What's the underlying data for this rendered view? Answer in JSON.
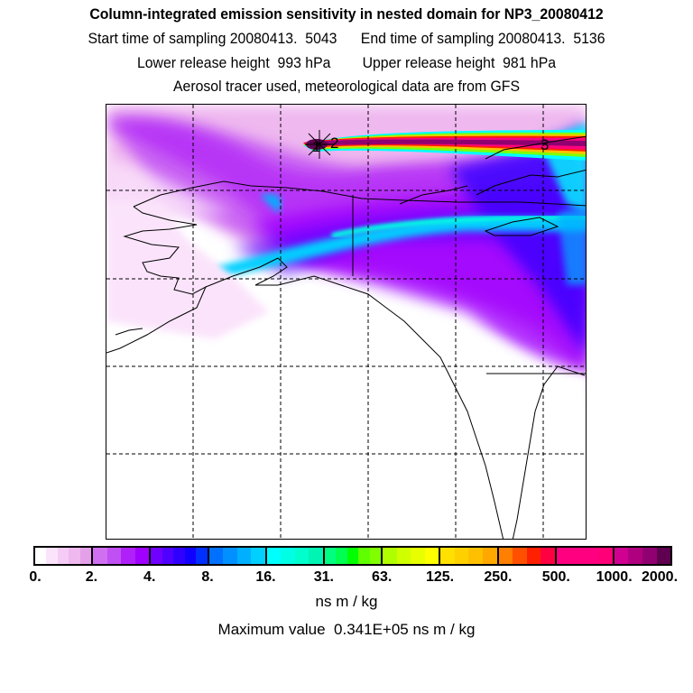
{
  "header": {
    "title": "Column-integrated emission sensitivity in nested domain for NP3_20080412",
    "line1": "Start time of sampling 20080413.  5043      End time of sampling 20080413.  5136",
    "line2": "Lower release height  993 hPa        Upper release height  981 hPa",
    "line3": "Aerosol tracer used, meteorological data are from GFS"
  },
  "map": {
    "markers": [
      "1",
      "2",
      "3"
    ]
  },
  "colorbar": {
    "ticks": [
      "0.",
      "2.",
      "4.",
      "8.",
      "16.",
      "31.",
      "63.",
      "125.",
      "250.",
      "500.",
      "1000.",
      "2000."
    ],
    "segments": [
      [
        "#ffffff",
        "#fbe4fb",
        "#f5ccf5",
        "#efb8ef",
        "#e4a0e8"
      ],
      [
        "#d070f0",
        "#c050f4",
        "#b020f8",
        "#a000ff"
      ],
      [
        "#7000ff",
        "#5000ff",
        "#3000ff",
        "#1000ff",
        "#0030ff"
      ],
      [
        "#0070ff",
        "#0090ff",
        "#00b0ff",
        "#00d0ff"
      ],
      [
        "#00ffff",
        "#00ffe4",
        "#00ffcc",
        "#00f4b4"
      ],
      [
        "#00ff80",
        "#00ff50",
        "#00ff00",
        "#60ff00",
        "#80ff00"
      ],
      [
        "#b0ff00",
        "#d0ff00",
        "#e8ff00",
        "#ffff00"
      ],
      [
        "#ffe000",
        "#ffd000",
        "#ffc000",
        "#ffa800"
      ],
      [
        "#ff8000",
        "#ff5000",
        "#ff2000",
        "#ff0040"
      ],
      [
        "#ff0080",
        "#ff0080",
        "#ff0080",
        "#ff0078"
      ],
      [
        "#d00090",
        "#b00080",
        "#900070",
        "#600050"
      ]
    ],
    "unit": "ns m / kg",
    "max_value": "Maximum value  0.341E+05 ns m / kg"
  }
}
